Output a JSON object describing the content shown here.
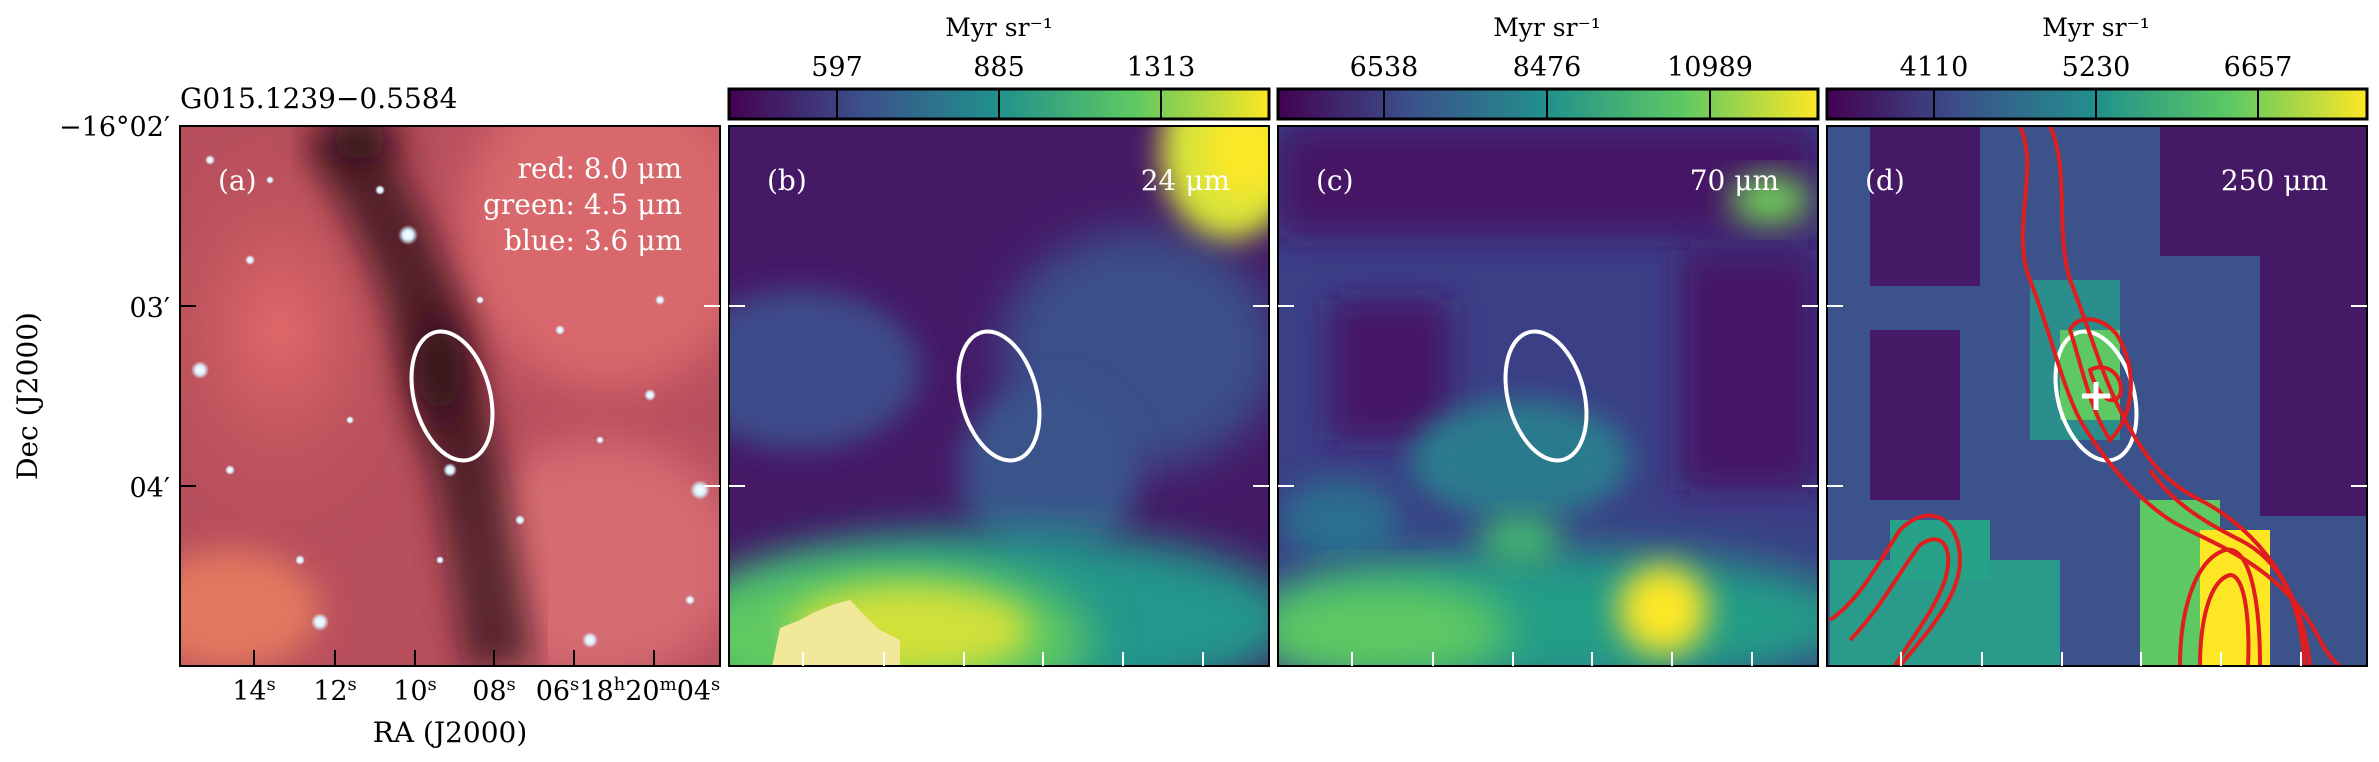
{
  "source_name": "G015.1239−0.5584",
  "axes": {
    "xlabel": "RA (J2000)",
    "ylabel": "Dec (J2000)",
    "ra_ticks": [
      "14",
      "12",
      "10",
      "08",
      "06"
    ],
    "ra_units": {
      "s": "s",
      "h": "h",
      "m": "m"
    },
    "ra_prefix_hour": "18",
    "ra_prefix_min": "20",
    "ra_last": "04",
    "dec_ticks": [
      "−16°02′",
      "03′",
      "04′"
    ]
  },
  "panels": [
    {
      "letter": "(a)",
      "legend": [
        "red: 8.0 μm",
        "green: 4.5 μm",
        "blue: 3.6 μm"
      ],
      "colormap": "rgb"
    },
    {
      "letter": "(b)",
      "band": "24 μm",
      "colorbar_unit": "Myr sr⁻¹",
      "colorbar_ticks": [
        "597",
        "885",
        "1313"
      ]
    },
    {
      "letter": "(c)",
      "band": "70 μm",
      "colorbar_unit": "Myr sr⁻¹",
      "colorbar_ticks": [
        "6538",
        "8476",
        "10989"
      ]
    },
    {
      "letter": "(d)",
      "band": "250 μm",
      "colorbar_unit": "Myr sr⁻¹",
      "colorbar_ticks": [
        "4110",
        "5230",
        "6657"
      ],
      "contours": true,
      "contour_color": "#e11d1d"
    }
  ],
  "colors": {
    "ellipse": "#ffffff",
    "viridis": [
      "#440154",
      "#3b528b",
      "#21918c",
      "#5ec962",
      "#fde725"
    ],
    "contour": "#e11d1d"
  }
}
